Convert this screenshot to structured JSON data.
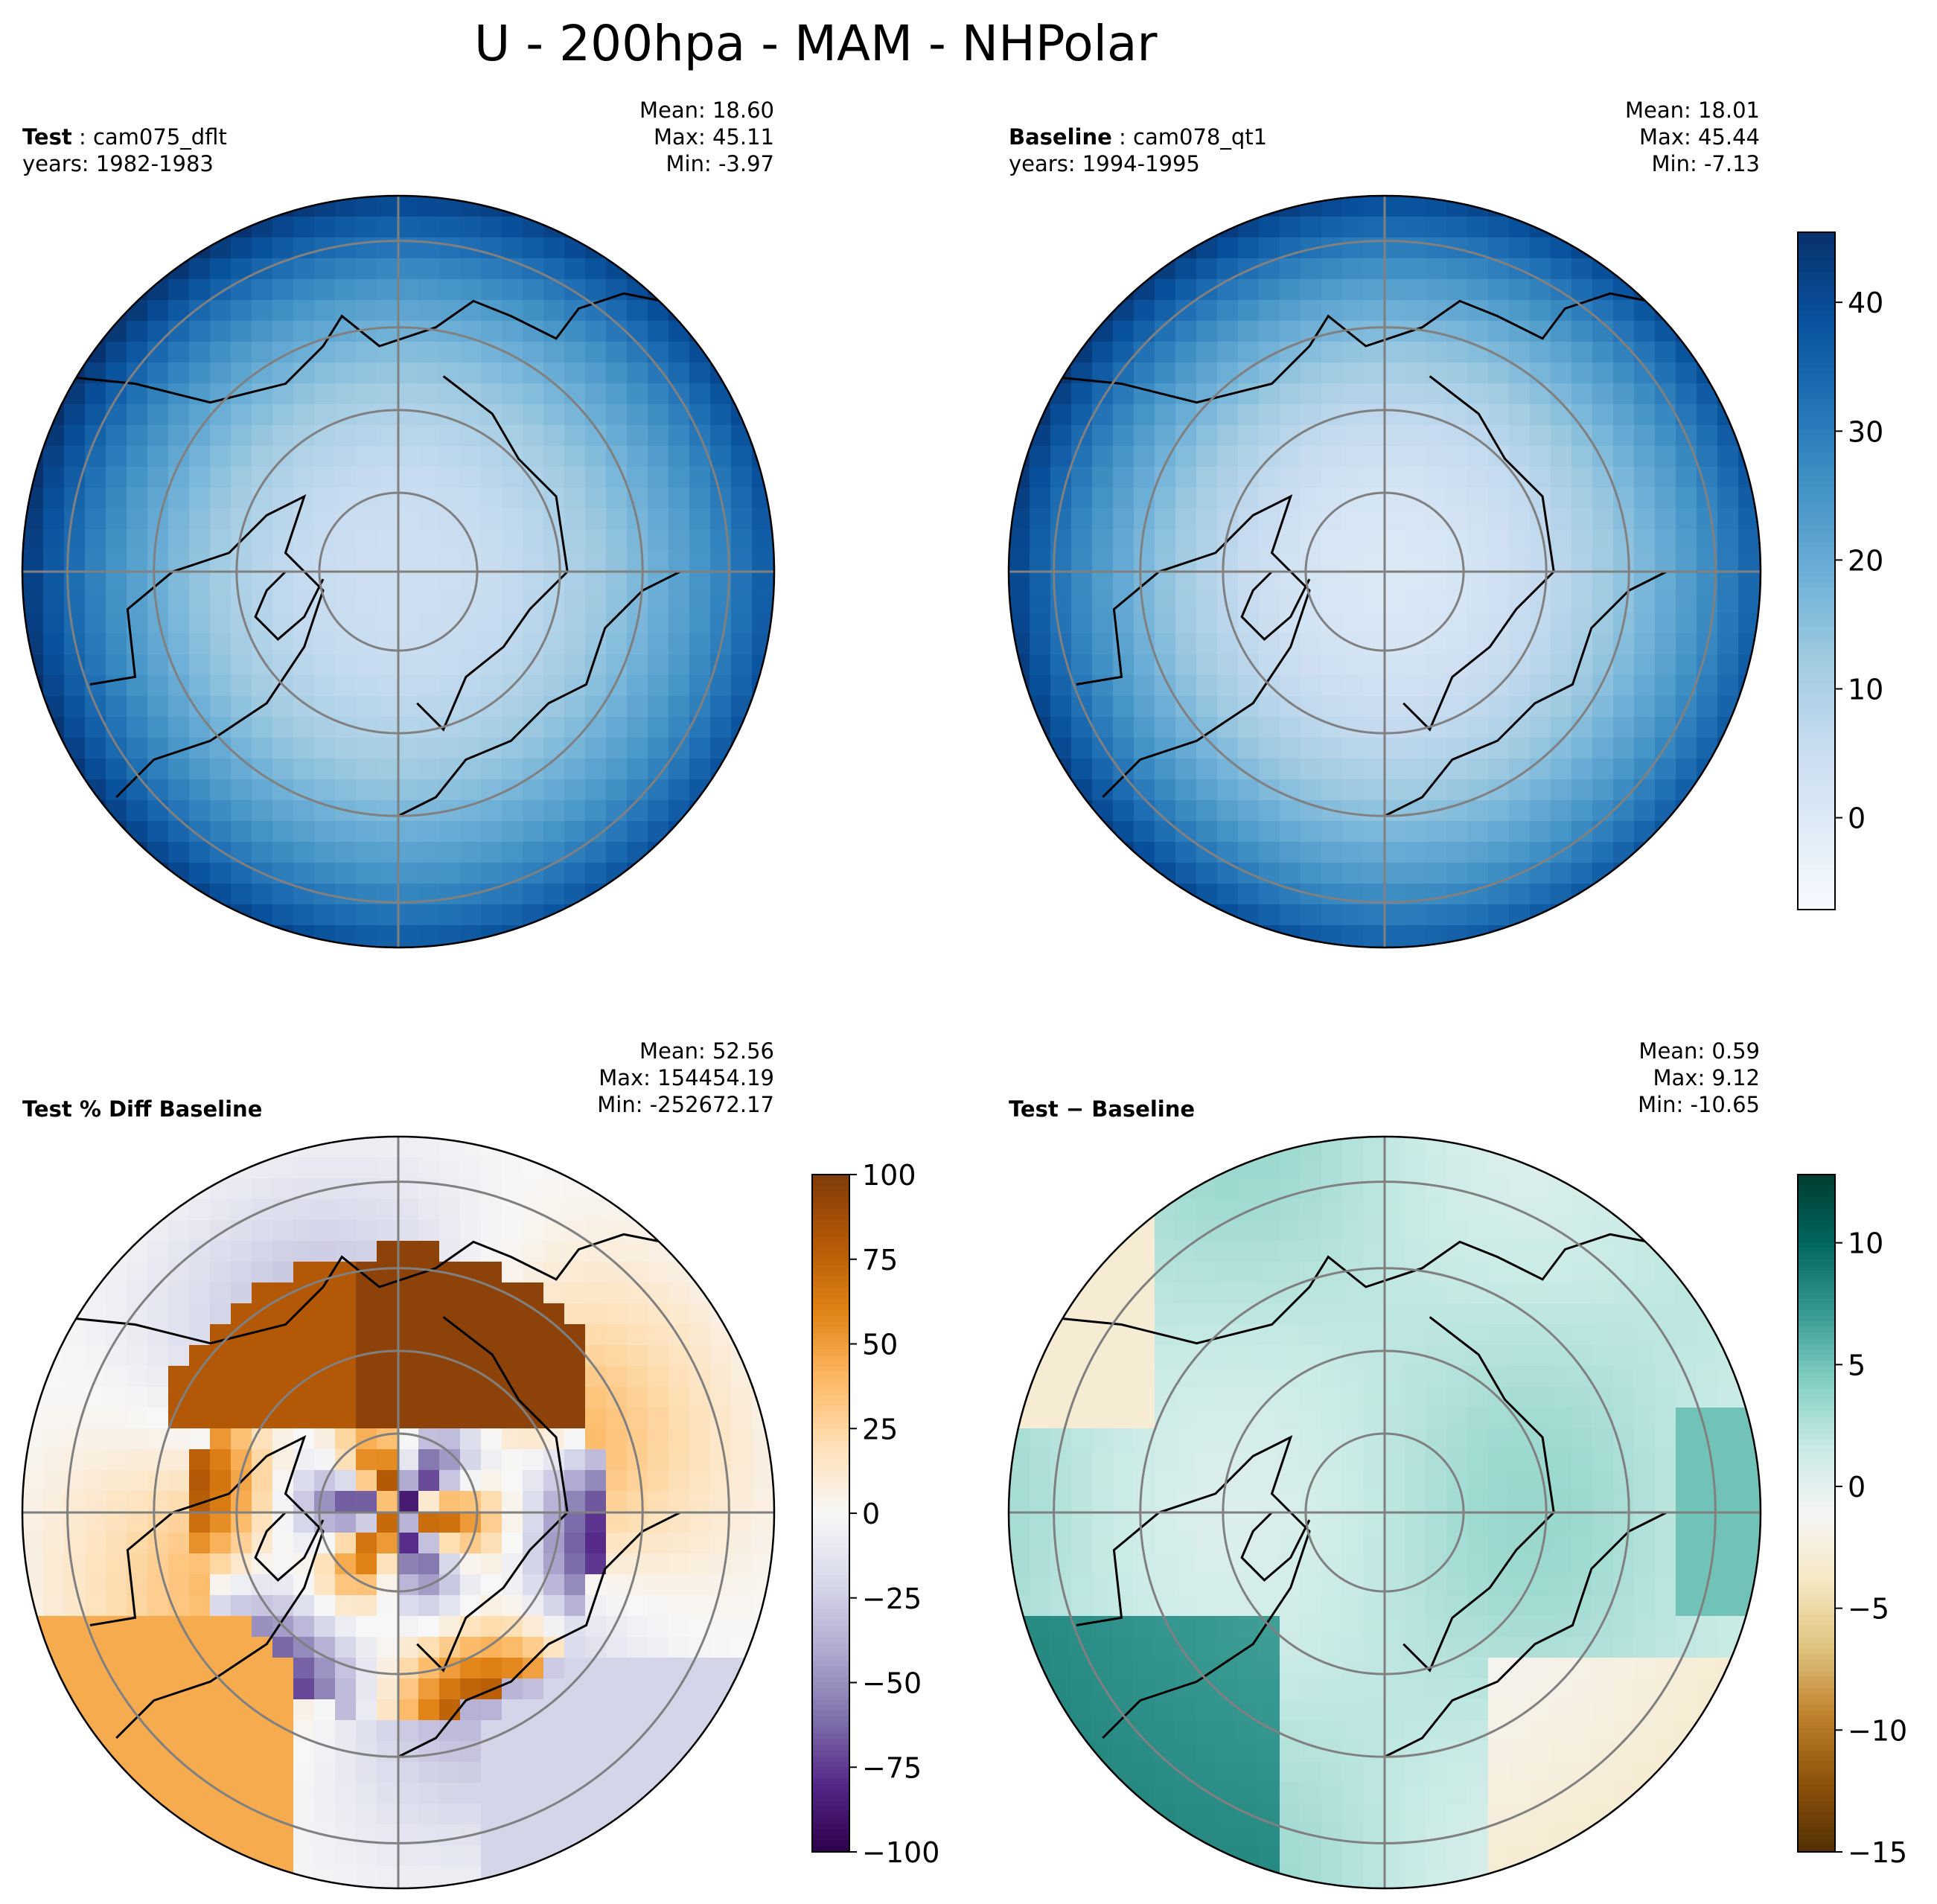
{
  "title": "U - 200hpa - MAM - NHPolar",
  "panels": [
    {
      "id": "test",
      "label_bold": "Test",
      "label_sep": " : ",
      "label_name": "cam075_dflt",
      "years": "years: 1982-1983",
      "stats": {
        "mean": "Mean: 18.60",
        "max": "Max: 45.11",
        "min": "Min: -3.97"
      }
    },
    {
      "id": "baseline",
      "label_bold": "Baseline",
      "label_sep": " : ",
      "label_name": "cam078_qt1",
      "years": "years: 1994-1995",
      "stats": {
        "mean": "Mean: 18.01",
        "max": "Max: 45.44",
        "min": "Min: -7.13"
      }
    },
    {
      "id": "pctdiff",
      "label_bold": "Test % Diff Baseline",
      "stats": {
        "mean": "Mean: 52.56",
        "max": "Max: 154454.19",
        "min": "Min: -252672.17"
      }
    },
    {
      "id": "diff",
      "label_bold": "Test − Baseline",
      "stats": {
        "mean": "Mean:  0.59",
        "max": "Max:  9.12",
        "min": "Min: -10.65"
      }
    }
  ],
  "colorbars": {
    "blues": {
      "range": [
        -7.13,
        45.44
      ],
      "ticks": [
        0,
        10,
        20,
        30,
        40
      ],
      "tick_labels": [
        "0",
        "10",
        "20",
        "30",
        "40"
      ],
      "colors": [
        "#f7fbff",
        "#deebf7",
        "#c6dbef",
        "#9ecae1",
        "#6baed6",
        "#4292c6",
        "#2171b5",
        "#08519c",
        "#08306b"
      ]
    },
    "puor": {
      "range": [
        -100,
        100
      ],
      "ticks": [
        -100,
        -75,
        -50,
        -25,
        0,
        25,
        50,
        75,
        100
      ],
      "tick_labels": [
        "−100",
        "−75",
        "−50",
        "−25",
        "0",
        "25",
        "50",
        "75",
        "100"
      ],
      "colors": [
        "#2d004b",
        "#542788",
        "#8073ac",
        "#b2abd2",
        "#d8daeb",
        "#f7f7f7",
        "#fee0b6",
        "#fdb863",
        "#e08214",
        "#b35806",
        "#7f3b08"
      ]
    },
    "brbg": {
      "range": [
        -15,
        12.8
      ],
      "ticks": [
        -15,
        -10,
        -5,
        0,
        5,
        10
      ],
      "tick_labels": [
        "−15",
        "−10",
        "−5",
        "0",
        "5",
        "10"
      ],
      "colors": [
        "#543005",
        "#8c510a",
        "#bf812d",
        "#dfc27d",
        "#f6e8c3",
        "#f5f5f5",
        "#c7eae5",
        "#80cdc1",
        "#35978f",
        "#01665e",
        "#003c30"
      ]
    }
  },
  "chart_data": [
    {
      "type": "heatmap",
      "title": "Test : cam075_dflt",
      "projection": "north polar stereographic",
      "field": "U at 200 hPa, MAM",
      "value_range": [
        -3.97,
        45.11
      ],
      "mean": 18.6,
      "description_values": {
        "pole": 5,
        "midlat_jet": 38,
        "high_lat_ring": 10
      }
    },
    {
      "type": "heatmap",
      "title": "Baseline : cam078_qt1",
      "projection": "north polar stereographic",
      "field": "U at 200 hPa, MAM",
      "value_range": [
        -7.13,
        45.44
      ],
      "mean": 18.01,
      "description_values": {
        "pole": 3,
        "midlat_jet": 38,
        "high_lat_ring": 8
      }
    },
    {
      "type": "heatmap",
      "title": "Test % Diff Baseline",
      "projection": "north polar stereographic",
      "value_range": [
        -252672.17,
        154454.19
      ],
      "mean": 52.56,
      "colorbar_range": [
        -100,
        100
      ]
    },
    {
      "type": "heatmap",
      "title": "Test − Baseline",
      "projection": "north polar stereographic",
      "value_range": [
        -10.65,
        9.12
      ],
      "mean": 0.59,
      "colorbar_range": [
        -15,
        12.8
      ]
    }
  ]
}
